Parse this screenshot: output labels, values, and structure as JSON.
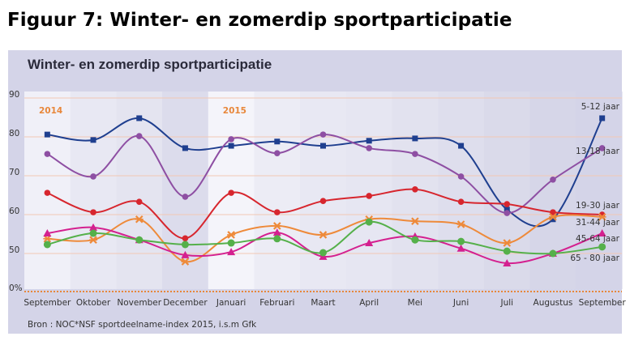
{
  "figure_title": "Figuur 7: Winter- en zomerdip sportparticipatie",
  "source": "Bron : NOC*NSF sportdeelname-index 2015, i.s.m Gfk",
  "chart_data": {
    "type": "line",
    "title": "Winter- en zomerdip sportparticipatie",
    "xlabel": "",
    "ylabel": "",
    "y_ticks": [
      "0%",
      "50",
      "60",
      "70",
      "80",
      "90"
    ],
    "ylim": [
      45,
      90
    ],
    "y_axis_break": true,
    "grid": true,
    "year_annotations": [
      {
        "label": "2014",
        "at_category_index": 0
      },
      {
        "label": "2015",
        "at_category_index": 4
      }
    ],
    "categories": [
      "September",
      "Oktober",
      "November",
      "December",
      "Januari",
      "Februari",
      "Maart",
      "April",
      "Mei",
      "Juni",
      "Juli",
      "Augustus",
      "September"
    ],
    "legend_placement": "right (inline labels at line ends)",
    "series": [
      {
        "name": "5-12 jaar",
        "color": "#1f3f8f",
        "marker": "square",
        "values": [
          80.6,
          79.2,
          84.8,
          77.1,
          77.7,
          78.8,
          77.7,
          79.0,
          79.6,
          77.7,
          61.3,
          58.8,
          84.8
        ]
      },
      {
        "name": "13-18 jaar",
        "color": "#8e4fa3",
        "marker": "circle",
        "values": [
          75.6,
          69.8,
          80.2,
          64.6,
          79.4,
          75.8,
          80.6,
          77.1,
          75.6,
          69.8,
          60.4,
          69.0,
          77.1
        ]
      },
      {
        "name": "19-30 jaar",
        "color": "#d7262e",
        "marker": "circle",
        "values": [
          65.6,
          60.6,
          63.3,
          53.9,
          65.6,
          60.6,
          63.5,
          64.8,
          66.5,
          63.3,
          62.7,
          60.6,
          60.0
        ]
      },
      {
        "name": "31-44 jaar",
        "color": "#ee8a3a",
        "marker": "x",
        "values": [
          53.8,
          53.5,
          58.8,
          47.9,
          54.8,
          57.1,
          54.8,
          58.8,
          58.3,
          57.5,
          52.7,
          59.4,
          59.4
        ]
      },
      {
        "name": "45-64 jaar",
        "color": "#d4208f",
        "marker": "triangle",
        "values": [
          55.2,
          56.7,
          53.5,
          49.6,
          50.4,
          55.4,
          49.2,
          52.7,
          54.4,
          51.3,
          47.5,
          50.0,
          55.2
        ]
      },
      {
        "name": "65 - 80  jaar",
        "color": "#55b04a",
        "marker": "circle",
        "values": [
          52.3,
          55.2,
          53.5,
          52.3,
          52.7,
          53.8,
          50.2,
          58.1,
          53.5,
          53.1,
          50.6,
          50.0,
          51.7
        ]
      }
    ]
  }
}
